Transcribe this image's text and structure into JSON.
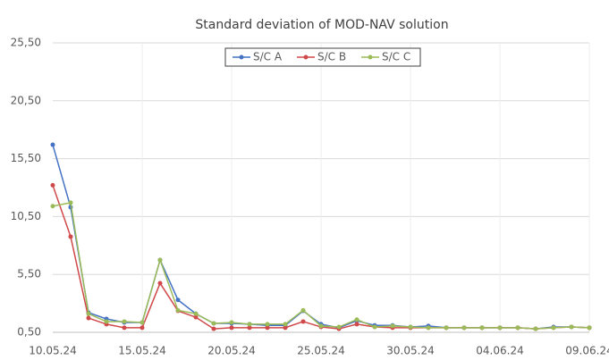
{
  "chart_data": {
    "type": "line",
    "title": "Standard deviation of MOD-NAV solution",
    "categories": [
      "10.05.24",
      null,
      null,
      null,
      null,
      "15.05.24",
      null,
      null,
      null,
      null,
      "20.05.24",
      null,
      null,
      null,
      null,
      "25.05.24",
      null,
      null,
      null,
      null,
      "30.05.24",
      null,
      null,
      null,
      null,
      "04.06.24",
      null,
      null,
      null,
      null,
      "09.06.24"
    ],
    "series": [
      {
        "name": "S/C A",
        "color": "#4472c4",
        "values": [
          16.7,
          11.3,
          2.2,
          1.66,
          1.35,
          1.35,
          6.75,
          3.3,
          2.1,
          1.27,
          1.27,
          1.2,
          1.1,
          1.1,
          2.35,
          1.2,
          0.9,
          1.5,
          1.1,
          1.1,
          0.96,
          1.05,
          0.9,
          0.9,
          0.9,
          0.9,
          0.9,
          0.8,
          0.96,
          0.96,
          0.9
        ]
      },
      {
        "name": "S/C B",
        "color": "#d0494a",
        "values": [
          13.2,
          8.76,
          1.73,
          1.2,
          0.9,
          0.9,
          4.74,
          2.35,
          1.8,
          0.8,
          0.9,
          0.9,
          0.9,
          0.9,
          1.43,
          0.96,
          0.8,
          1.2,
          0.96,
          0.9,
          0.9,
          0.9,
          0.9,
          0.9,
          0.9,
          0.9,
          0.9,
          0.8,
          0.9,
          0.96,
          0.9
        ]
      },
      {
        "name": "S/C C",
        "color": "#9bbb59",
        "values": [
          11.4,
          11.7,
          2.1,
          1.43,
          1.43,
          1.35,
          6.75,
          2.4,
          2.1,
          1.27,
          1.35,
          1.2,
          1.2,
          1.2,
          2.4,
          1.05,
          0.96,
          1.6,
          0.96,
          1.05,
          0.96,
          0.9,
          0.9,
          0.9,
          0.9,
          0.9,
          0.9,
          0.8,
          0.9,
          0.96,
          0.9
        ]
      }
    ],
    "ylim": [
      0.5,
      25.5
    ],
    "yticks": [
      {
        "value": 0.5,
        "label": "0,50"
      },
      {
        "value": 5.5,
        "label": "5,50"
      },
      {
        "value": 10.5,
        "label": "10,50"
      },
      {
        "value": 15.5,
        "label": "15,50"
      },
      {
        "value": 20.5,
        "label": "20,50"
      },
      {
        "value": 25.5,
        "label": "25,50"
      }
    ],
    "grid": true,
    "legend": "top"
  }
}
